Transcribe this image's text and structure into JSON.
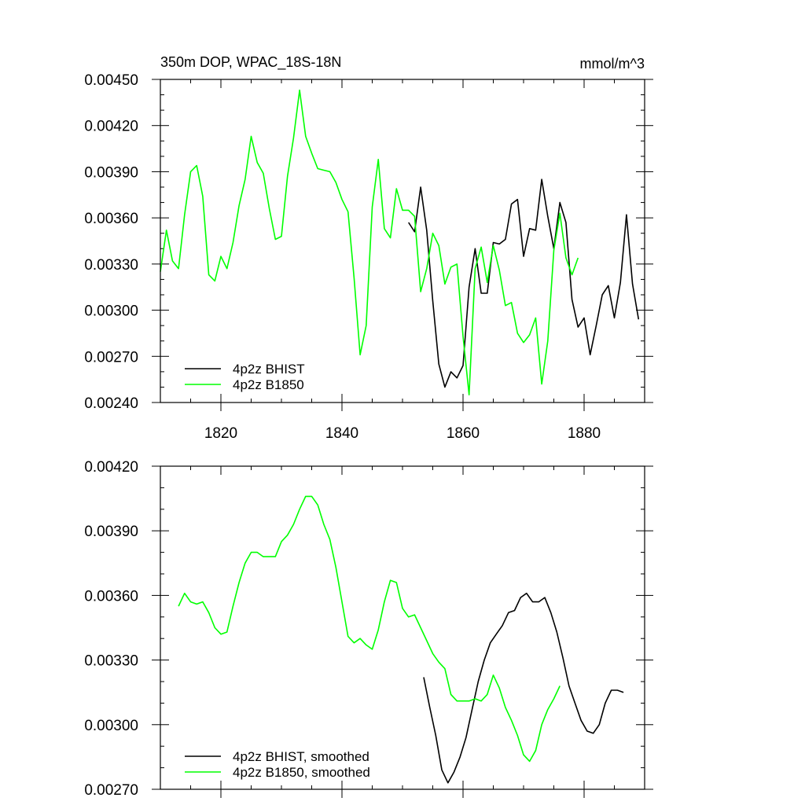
{
  "chart_data": [
    {
      "type": "line",
      "title": "350m DOP, WPAC_18S-18N",
      "units": "mmol/m^3",
      "xlim": [
        1810,
        1890
      ],
      "ylim": [
        0.0024,
        0.0045
      ],
      "xticks": [
        1820,
        1840,
        1860,
        1880
      ],
      "xtick_labels": [
        "1820",
        "1840",
        "1860",
        "1880"
      ],
      "yticks": [
        0.0024,
        0.0027,
        0.003,
        0.0033,
        0.0036,
        0.0039,
        0.0042,
        0.0045
      ],
      "ytick_labels": [
        "0.00240",
        "0.00270",
        "0.00300",
        "0.00330",
        "0.00360",
        "0.00390",
        "0.00420",
        "0.00450"
      ],
      "legend_position": "bottom-left",
      "series": [
        {
          "name": "4p2z BHIST",
          "color": "#000000",
          "x": [
            1851,
            1852,
            1853,
            1854,
            1855,
            1856,
            1857,
            1858,
            1859,
            1860,
            1861,
            1862,
            1863,
            1864,
            1865,
            1866,
            1867,
            1868,
            1869,
            1870,
            1871,
            1872,
            1873,
            1874,
            1875,
            1876,
            1877,
            1878,
            1879,
            1880,
            1881,
            1882,
            1883,
            1884,
            1885,
            1886,
            1887,
            1888,
            1889
          ],
          "y": [
            0.00357,
            0.00351,
            0.0038,
            0.00352,
            0.00306,
            0.00265,
            0.0025,
            0.0026,
            0.00256,
            0.00264,
            0.00315,
            0.0034,
            0.00311,
            0.00311,
            0.00344,
            0.00343,
            0.00346,
            0.00369,
            0.00372,
            0.00335,
            0.00353,
            0.00352,
            0.00385,
            0.00361,
            0.0034,
            0.0037,
            0.00357,
            0.00307,
            0.00289,
            0.00295,
            0.00271,
            0.0029,
            0.0031,
            0.00316,
            0.00295,
            0.00318,
            0.00362,
            0.00317,
            0.00294
          ]
        },
        {
          "name": "4p2z B1850",
          "color": "#00ff00",
          "x": [
            1810,
            1811,
            1812,
            1813,
            1814,
            1815,
            1816,
            1817,
            1818,
            1819,
            1820,
            1821,
            1822,
            1823,
            1824,
            1825,
            1826,
            1827,
            1828,
            1829,
            1830,
            1831,
            1832,
            1833,
            1834,
            1835,
            1836,
            1837,
            1838,
            1839,
            1840,
            1841,
            1842,
            1843,
            1844,
            1845,
            1846,
            1847,
            1848,
            1849,
            1850,
            1851,
            1852,
            1853,
            1854,
            1855,
            1856,
            1857,
            1858,
            1859,
            1860,
            1861,
            1862,
            1863,
            1864,
            1865,
            1866,
            1867,
            1868,
            1869,
            1870,
            1871,
            1872,
            1873,
            1874,
            1875,
            1876,
            1877,
            1878,
            1879
          ],
          "y": [
            0.00325,
            0.00352,
            0.00332,
            0.00327,
            0.00362,
            0.0039,
            0.00394,
            0.00374,
            0.00323,
            0.00319,
            0.00335,
            0.00327,
            0.00344,
            0.00368,
            0.00385,
            0.00413,
            0.00396,
            0.00389,
            0.00366,
            0.00346,
            0.00348,
            0.00387,
            0.00412,
            0.00443,
            0.00413,
            0.00402,
            0.00392,
            0.00391,
            0.0039,
            0.00383,
            0.00372,
            0.00364,
            0.00321,
            0.00271,
            0.0029,
            0.00367,
            0.00398,
            0.00353,
            0.00347,
            0.00379,
            0.00365,
            0.00365,
            0.00361,
            0.00312,
            0.00327,
            0.0035,
            0.00342,
            0.00317,
            0.00328,
            0.0033,
            0.00283,
            0.00245,
            0.00327,
            0.00341,
            0.00318,
            0.00342,
            0.00326,
            0.00303,
            0.00305,
            0.00285,
            0.00279,
            0.00284,
            0.00295,
            0.00252,
            0.0028,
            0.00339,
            0.00363,
            0.00334,
            0.00323,
            0.00334
          ]
        }
      ]
    },
    {
      "type": "line",
      "title": "",
      "xlim": [
        1810,
        1890
      ],
      "ylim": [
        0.0027,
        0.0042
      ],
      "xticks": [
        1820,
        1840,
        1860,
        1880
      ],
      "xtick_labels": [],
      "yticks": [
        0.0027,
        0.003,
        0.0033,
        0.0036,
        0.0039,
        0.0042
      ],
      "ytick_labels": [
        "0.00270",
        "0.00300",
        "0.00330",
        "0.00360",
        "0.00390",
        "0.00420"
      ],
      "legend_position": "bottom-left",
      "series": [
        {
          "name": "4p2z BHIST, smoothed",
          "color": "#000000",
          "x": [
            1853.5,
            1854.5,
            1855.5,
            1856.5,
            1857.5,
            1858.5,
            1859.5,
            1860.5,
            1861.5,
            1862.5,
            1863.5,
            1864.5,
            1865.5,
            1866.5,
            1867.5,
            1868.5,
            1869.5,
            1870.5,
            1871.5,
            1872.5,
            1873.5,
            1874.5,
            1875.5,
            1876.5,
            1877.5,
            1878.5,
            1879.5,
            1880.5,
            1881.5,
            1882.5,
            1883.5,
            1884.5,
            1885.5,
            1886.5
          ],
          "y": [
            0.00322,
            0.00308,
            0.00295,
            0.00279,
            0.00273,
            0.00278,
            0.00285,
            0.00294,
            0.00307,
            0.0032,
            0.0033,
            0.00338,
            0.00342,
            0.00346,
            0.00352,
            0.00353,
            0.00359,
            0.00361,
            0.00357,
            0.00357,
            0.00359,
            0.00352,
            0.00343,
            0.00331,
            0.00318,
            0.0031,
            0.00302,
            0.00297,
            0.00296,
            0.003,
            0.0031,
            0.00316,
            0.00316,
            0.00315
          ]
        },
        {
          "name": "4p2z B1850, smoothed",
          "color": "#00ff00",
          "x": [
            1813,
            1814,
            1815,
            1816,
            1817,
            1818,
            1819,
            1820,
            1821,
            1822,
            1823,
            1824,
            1825,
            1826,
            1827,
            1828,
            1829,
            1830,
            1831,
            1832,
            1833,
            1834,
            1835,
            1836,
            1837,
            1838,
            1839,
            1840,
            1841,
            1842,
            1843,
            1844,
            1845,
            1846,
            1847,
            1848,
            1849,
            1850,
            1851,
            1852,
            1853,
            1854,
            1855,
            1856,
            1857,
            1858,
            1859,
            1860,
            1861,
            1862,
            1863,
            1864,
            1865,
            1866,
            1867,
            1868,
            1869,
            1870,
            1871,
            1872,
            1873,
            1874,
            1875,
            1876
          ],
          "y": [
            0.00355,
            0.00361,
            0.00357,
            0.00356,
            0.00357,
            0.00352,
            0.00345,
            0.00342,
            0.00343,
            0.00355,
            0.00366,
            0.00375,
            0.0038,
            0.0038,
            0.00378,
            0.00378,
            0.00378,
            0.00385,
            0.00388,
            0.00393,
            0.004,
            0.00406,
            0.00406,
            0.00402,
            0.00393,
            0.00386,
            0.00373,
            0.00357,
            0.00341,
            0.00338,
            0.0034,
            0.00337,
            0.00335,
            0.00344,
            0.00357,
            0.00367,
            0.00366,
            0.00354,
            0.0035,
            0.00351,
            0.00345,
            0.00339,
            0.00333,
            0.00329,
            0.00326,
            0.00314,
            0.00311,
            0.00311,
            0.00311,
            0.00312,
            0.00311,
            0.00314,
            0.00323,
            0.00317,
            0.00308,
            0.00302,
            0.00295,
            0.00286,
            0.00283,
            0.00288,
            0.003,
            0.00307,
            0.00312,
            0.00318
          ]
        }
      ]
    }
  ]
}
